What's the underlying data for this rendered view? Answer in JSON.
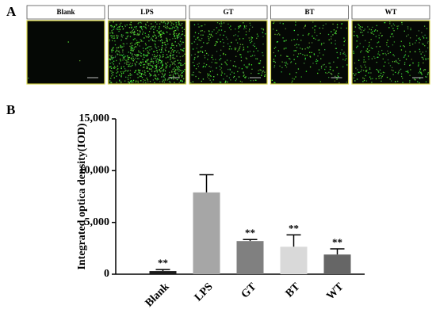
{
  "panel_labels": [
    "A",
    "B"
  ],
  "image_labels": [
    "Blank",
    "LPS",
    "GT",
    "BT",
    "WT"
  ],
  "chart_data": {
    "type": "bar",
    "y_label": "Integrated optica density(IOD)",
    "categories": [
      "Blank",
      "LPS",
      "GT",
      "BT",
      "WT"
    ],
    "values": [
      300,
      7900,
      3200,
      2650,
      1900
    ],
    "errors": [
      150,
      1700,
      150,
      1150,
      550
    ],
    "colors": [
      "#1a1a1a",
      "#a6a6a6",
      "#808080",
      "#d9d9d9",
      "#666666"
    ],
    "annotations": [
      {
        "category": "Blank",
        "text": "**"
      },
      {
        "category": "GT",
        "text": "**"
      },
      {
        "category": "BT",
        "text": "**"
      },
      {
        "category": "WT",
        "text": "**"
      }
    ],
    "ylim": [
      0,
      15000
    ],
    "yticks": [
      0,
      {
        "value": 5000,
        "label": "5,000"
      },
      {
        "value": 10000,
        "label": "10,000"
      },
      {
        "value": 15000,
        "label": "15,000"
      }
    ]
  }
}
